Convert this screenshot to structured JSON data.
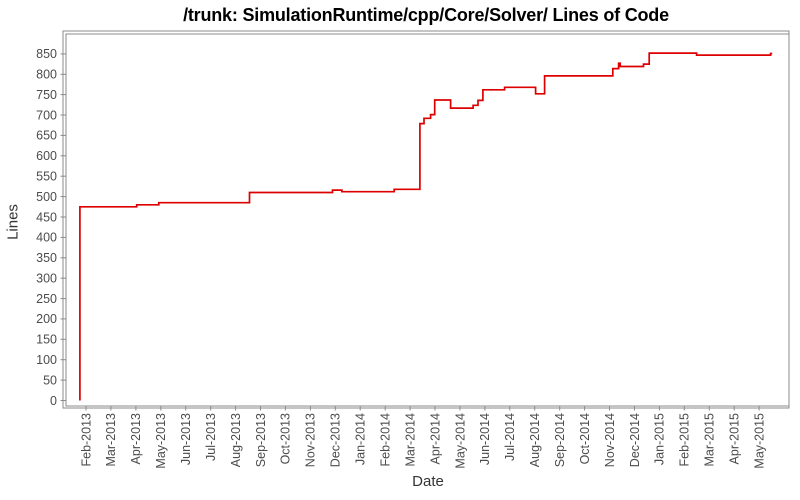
{
  "chart_data": {
    "type": "line",
    "subtype": "step-after",
    "title": "/trunk: SimulationRuntime/cpp/Core/Solver/ Lines of Code",
    "xlabel": "Date",
    "ylabel": "Lines",
    "legend": "none",
    "grid": false,
    "ylim": [
      0,
      850
    ],
    "y_tick_step": 50,
    "y_ticks": [
      0,
      50,
      100,
      150,
      200,
      250,
      300,
      350,
      400,
      450,
      500,
      550,
      600,
      650,
      700,
      750,
      800,
      850
    ],
    "x_tick_labels": [
      "Feb-2013",
      "Mar-2013",
      "Apr-2013",
      "May-2013",
      "Jun-2013",
      "Jul-2013",
      "Aug-2013",
      "Sep-2013",
      "Oct-2013",
      "Nov-2013",
      "Dec-2013",
      "Jan-2014",
      "Feb-2014",
      "Mar-2014",
      "Apr-2014",
      "May-2014",
      "Jun-2014",
      "Jul-2014",
      "Aug-2014",
      "Sep-2014",
      "Oct-2014",
      "Nov-2014",
      "Dec-2014",
      "Jan-2015",
      "Feb-2015",
      "Mar-2015",
      "Apr-2015",
      "May-2015"
    ],
    "colors": {
      "line": "#dd0000",
      "frame": "#8b8b8b",
      "tick_label": "#4c4c4c",
      "axis_title": "#333333",
      "title": "#000000",
      "background": "#ffffff"
    },
    "series": [
      {
        "name": "Lines of Code",
        "points": [
          {
            "date": "2013-01-24",
            "lines": 0
          },
          {
            "date": "2013-01-24",
            "lines": 475
          },
          {
            "date": "2013-04-02",
            "lines": 480
          },
          {
            "date": "2013-04-29",
            "lines": 485
          },
          {
            "date": "2013-08-18",
            "lines": 510
          },
          {
            "date": "2013-11-28",
            "lines": 516
          },
          {
            "date": "2013-12-09",
            "lines": 512
          },
          {
            "date": "2014-02-12",
            "lines": 518
          },
          {
            "date": "2014-03-13",
            "lines": 679
          },
          {
            "date": "2014-03-18",
            "lines": 692
          },
          {
            "date": "2014-03-26",
            "lines": 701
          },
          {
            "date": "2014-03-31",
            "lines": 737
          },
          {
            "date": "2014-04-20",
            "lines": 717
          },
          {
            "date": "2014-05-17",
            "lines": 724
          },
          {
            "date": "2014-05-23",
            "lines": 736
          },
          {
            "date": "2014-05-29",
            "lines": 762
          },
          {
            "date": "2014-06-25",
            "lines": 768
          },
          {
            "date": "2014-08-02",
            "lines": 752
          },
          {
            "date": "2014-08-13",
            "lines": 796
          },
          {
            "date": "2014-11-05",
            "lines": 814
          },
          {
            "date": "2014-11-12",
            "lines": 827
          },
          {
            "date": "2014-11-14",
            "lines": 819
          },
          {
            "date": "2014-12-12",
            "lines": 825
          },
          {
            "date": "2014-12-19",
            "lines": 852
          },
          {
            "date": "2015-02-16",
            "lines": 847
          },
          {
            "date": "2015-05-15",
            "lines": 851
          },
          {
            "date": "2015-05-17",
            "lines": 851
          }
        ]
      }
    ]
  }
}
